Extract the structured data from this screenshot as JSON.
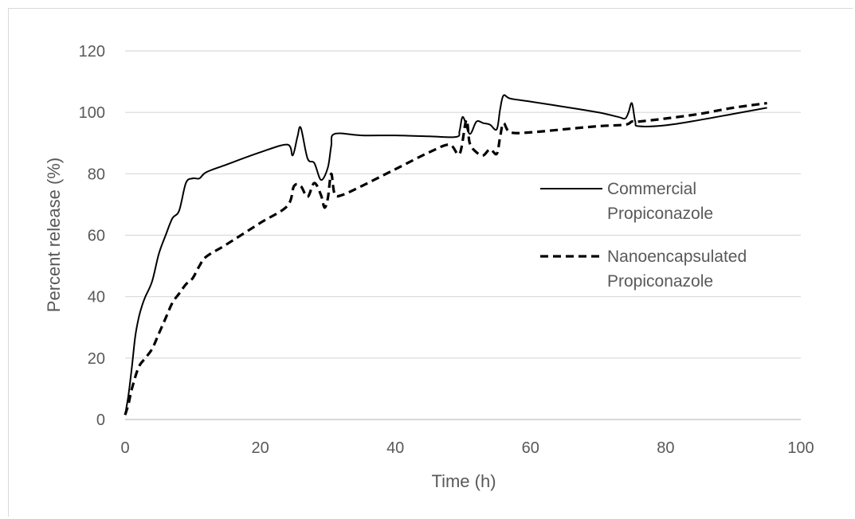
{
  "chart_data": {
    "type": "line",
    "xlabel": "Time (h)",
    "ylabel": "Percent release (%)",
    "xlim": [
      0,
      100
    ],
    "ylim": [
      0,
      120
    ],
    "x_ticks": [
      "0",
      "20",
      "40",
      "60",
      "80",
      "100"
    ],
    "y_ticks": [
      "0",
      "20",
      "40",
      "60",
      "80",
      "100",
      "120"
    ],
    "grid": "horizontal",
    "legend_position": "right",
    "series": [
      {
        "name": "Commercial Propiconazole",
        "style": "solid",
        "color": "#000000",
        "x": [
          0,
          0.5,
          1,
          1.5,
          2,
          2.5,
          3,
          4,
          5,
          6,
          7,
          8,
          9,
          10,
          11,
          12,
          15,
          20,
          24,
          24.8,
          25.5,
          26,
          27,
          28,
          29,
          30,
          30.5,
          31,
          35,
          40,
          45,
          49,
          49.5,
          50,
          51,
          52,
          53,
          54,
          55,
          55.5,
          56,
          57,
          60,
          65,
          70,
          73,
          74,
          74.5,
          75,
          75.5,
          76,
          80,
          85,
          90,
          95
        ],
        "y": [
          1.5,
          8,
          17,
          27,
          33,
          37,
          40,
          45,
          54,
          60,
          65.5,
          68,
          77,
          78.5,
          78.5,
          80.5,
          83,
          87,
          89.5,
          86,
          92,
          95,
          85,
          83.5,
          78,
          82,
          89,
          93,
          92.5,
          92.5,
          92.2,
          92,
          94,
          98.5,
          93,
          97,
          96.5,
          96,
          94.5,
          101,
          105.5,
          104.5,
          103.5,
          101.8,
          100,
          98.5,
          98,
          100,
          103,
          97,
          95.5,
          95.8,
          97.5,
          99.5,
          101.5
        ]
      },
      {
        "name": "Nanoencapsulated Propiconazole",
        "style": "dashed",
        "color": "#000000",
        "x": [
          0,
          0.5,
          1,
          2,
          3,
          4,
          5,
          6,
          7,
          8,
          9,
          10,
          11,
          12,
          15,
          20,
          24,
          25,
          26,
          27,
          28,
          29,
          29.5,
          30,
          30.5,
          31,
          32,
          35,
          40,
          45,
          48,
          49.5,
          50.5,
          51,
          52,
          53,
          54,
          55,
          55.5,
          56,
          57,
          60,
          65,
          70,
          74,
          75,
          76,
          80,
          85,
          90,
          95
        ],
        "y": [
          1.5,
          5,
          10,
          17,
          20,
          23,
          28,
          33,
          38,
          41,
          44,
          46,
          50,
          53,
          57,
          64,
          69.5,
          76,
          76,
          72.5,
          77,
          73,
          69,
          72,
          80,
          73.5,
          73,
          76,
          81.5,
          87,
          89.5,
          86.5,
          97.5,
          90,
          87,
          86,
          88,
          86.5,
          92,
          96.5,
          93.5,
          93.5,
          94.5,
          95.5,
          96,
          97,
          97,
          98,
          99.5,
          101.5,
          103
        ]
      }
    ]
  }
}
